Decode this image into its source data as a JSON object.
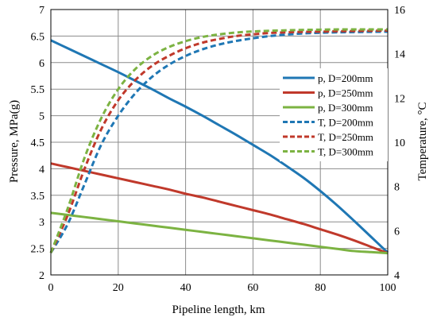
{
  "chart_data": {
    "type": "line",
    "xlabel": "Pipeline length, km",
    "ylabel_left": "Pressure, MPa(g)",
    "ylabel_right": "Temperature, °C",
    "xlim": [
      0,
      100
    ],
    "ylim_left": [
      2,
      7
    ],
    "ylim_right": [
      4,
      16
    ],
    "x_ticks": [
      "0",
      "20",
      "40",
      "60",
      "80",
      "100"
    ],
    "y_left_ticks": [
      "2",
      "2.5",
      "3",
      "3.5",
      "4",
      "4.5",
      "5",
      "5.5",
      "6",
      "6.5",
      "7"
    ],
    "y_right_ticks": [
      "4",
      "6",
      "8",
      "10",
      "12",
      "14",
      "16"
    ],
    "grid": true,
    "legend_position": "right",
    "x": [
      0,
      5,
      10,
      15,
      20,
      25,
      30,
      35,
      40,
      45,
      50,
      55,
      60,
      65,
      70,
      75,
      80,
      85,
      90,
      95,
      100
    ],
    "series": [
      {
        "name": "p, D=200mm",
        "axis": "left",
        "color": "#1F77B4",
        "dash": "solid",
        "values": [
          6.42,
          6.27,
          6.12,
          5.97,
          5.82,
          5.66,
          5.5,
          5.33,
          5.17,
          5.0,
          4.82,
          4.64,
          4.45,
          4.26,
          4.05,
          3.83,
          3.58,
          3.31,
          3.02,
          2.72,
          2.42
        ]
      },
      {
        "name": "p, D=250mm",
        "axis": "left",
        "color": "#C0392B",
        "dash": "solid",
        "values": [
          4.1,
          4.03,
          3.96,
          3.89,
          3.82,
          3.75,
          3.68,
          3.61,
          3.53,
          3.46,
          3.38,
          3.3,
          3.22,
          3.14,
          3.05,
          2.96,
          2.86,
          2.76,
          2.65,
          2.53,
          2.41
        ]
      },
      {
        "name": "p, D=300mm",
        "axis": "left",
        "color": "#7CB342",
        "dash": "solid",
        "values": [
          3.17,
          3.13,
          3.09,
          3.05,
          3.01,
          2.97,
          2.93,
          2.89,
          2.85,
          2.81,
          2.77,
          2.73,
          2.69,
          2.65,
          2.61,
          2.57,
          2.53,
          2.49,
          2.45,
          2.43,
          2.41
        ]
      },
      {
        "name": "T, D=200mm",
        "axis": "right",
        "color": "#1F77B4",
        "dash": "dashed",
        "values": [
          5.0,
          6.3,
          8.1,
          9.9,
          11.2,
          12.2,
          12.95,
          13.5,
          13.9,
          14.2,
          14.42,
          14.58,
          14.7,
          14.8,
          14.87,
          14.92,
          14.95,
          14.97,
          14.98,
          14.99,
          15.0
        ]
      },
      {
        "name": "T, D=250mm",
        "axis": "right",
        "color": "#C0392B",
        "dash": "dashed",
        "values": [
          5.0,
          6.7,
          8.8,
          10.6,
          11.9,
          12.8,
          13.45,
          13.9,
          14.25,
          14.5,
          14.67,
          14.8,
          14.88,
          14.94,
          14.97,
          14.99,
          15.0,
          15.02,
          15.03,
          15.04,
          15.05
        ]
      },
      {
        "name": "T, D=300mm",
        "axis": "right",
        "color": "#7CB342",
        "dash": "dashed",
        "values": [
          5.0,
          7.0,
          9.3,
          11.1,
          12.4,
          13.3,
          13.9,
          14.3,
          14.57,
          14.76,
          14.88,
          14.96,
          15.01,
          15.04,
          15.06,
          15.08,
          15.09,
          15.1,
          15.1,
          15.1,
          15.1
        ]
      }
    ]
  }
}
